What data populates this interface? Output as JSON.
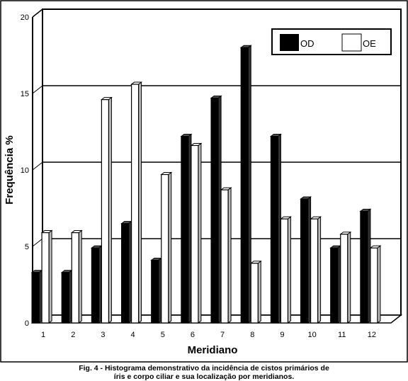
{
  "chart_data": {
    "type": "bar",
    "title": "",
    "xlabel": "Meridiano",
    "ylabel": "Frequência %",
    "categories": [
      "1",
      "2",
      "3",
      "4",
      "5",
      "6",
      "7",
      "8",
      "9",
      "10",
      "11",
      "12"
    ],
    "series": [
      {
        "name": "OD",
        "color": "#000000",
        "values": [
          3.3,
          3.3,
          4.9,
          6.5,
          4.1,
          12.2,
          14.7,
          18.0,
          12.2,
          8.1,
          4.9,
          7.3
        ]
      },
      {
        "name": "OE",
        "color": "#ffffff",
        "values": [
          5.9,
          5.9,
          14.6,
          15.6,
          9.7,
          11.6,
          8.7,
          3.9,
          6.8,
          6.8,
          5.8,
          4.9
        ]
      }
    ],
    "ylim": [
      0,
      20
    ],
    "yticks": [
      "0",
      "5",
      "10",
      "15",
      "20"
    ],
    "grid": true,
    "legend": "top-right",
    "style": "3d"
  },
  "caption": {
    "line1": "Fig. 4 - Histograma demonstrativo da incidência de cistos primários de",
    "line2": "íris e corpo ciliar e sua localização por meridianos."
  }
}
